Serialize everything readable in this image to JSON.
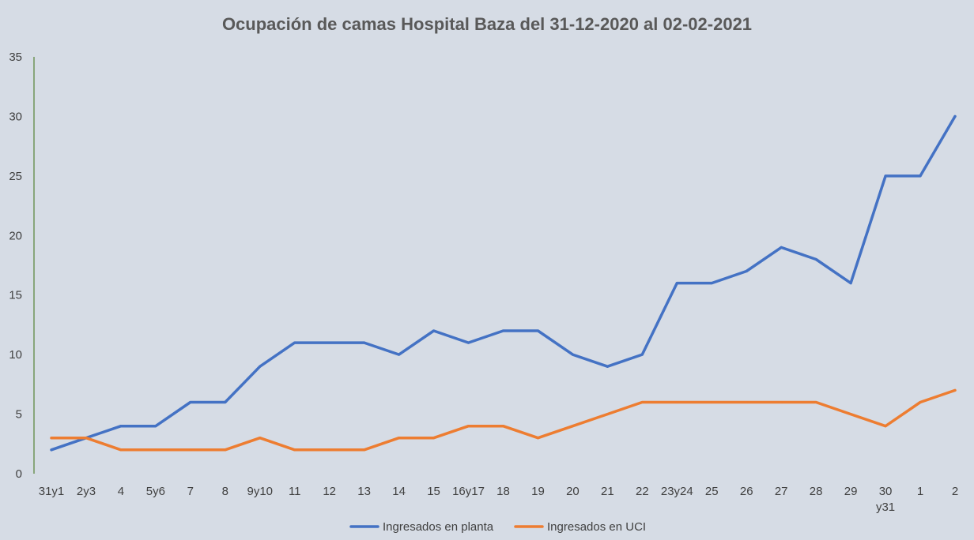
{
  "chart_data": {
    "type": "line",
    "title": "Ocupación de camas Hospital Baza del 31-12-2020 al 02-02-2021",
    "xlabel": "",
    "ylabel": "",
    "categories": [
      "31y1",
      "2y3",
      "4",
      "5y6",
      "7",
      "8",
      "9y10",
      "11",
      "12",
      "13",
      "14",
      "15",
      "16y17",
      "18",
      "19",
      "20",
      "21",
      "22",
      "23y24",
      "25",
      "26",
      "27",
      "28",
      "29",
      "30 y31",
      "1",
      "2"
    ],
    "ylim": [
      0,
      35
    ],
    "yticks": [
      0,
      5,
      10,
      15,
      20,
      25,
      30,
      35
    ],
    "grid": false,
    "legend_position": "bottom",
    "series": [
      {
        "name": "Ingresados en planta",
        "color": "#4472c4",
        "values": [
          2,
          3,
          4,
          4,
          6,
          6,
          9,
          11,
          11,
          11,
          10,
          12,
          11,
          12,
          12,
          10,
          9,
          10,
          16,
          16,
          17,
          19,
          18,
          16,
          25,
          25,
          30
        ]
      },
      {
        "name": "Ingresados en UCI",
        "color": "#ed7d31",
        "values": [
          3,
          3,
          2,
          2,
          2,
          2,
          3,
          2,
          2,
          2,
          3,
          3,
          4,
          4,
          3,
          4,
          5,
          6,
          6,
          6,
          6,
          6,
          6,
          5,
          4,
          6,
          7
        ]
      }
    ]
  }
}
